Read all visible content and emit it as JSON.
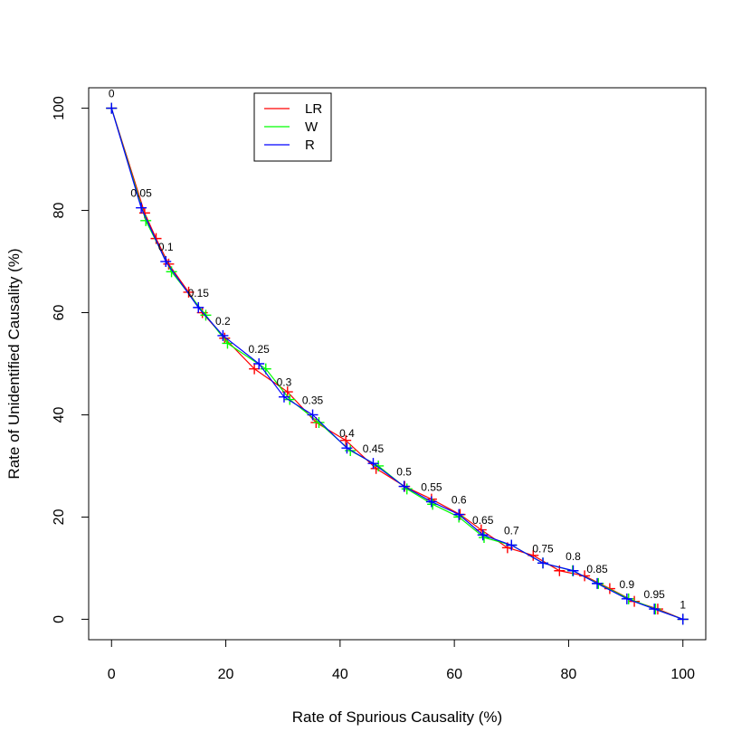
{
  "chart_data": {
    "type": "line",
    "title": "",
    "xlabel": "Rate of Spurious Causality (%)",
    "ylabel": "Rate of Unidentified Causality (%)",
    "xlim": [
      -4,
      104
    ],
    "ylim": [
      -4,
      104
    ],
    "xticks": [
      0,
      20,
      40,
      60,
      80,
      100
    ],
    "yticks": [
      0,
      20,
      40,
      60,
      80,
      100
    ],
    "grid": false,
    "legend_position": "top-left",
    "threshold_labels": [
      "0",
      "0.05",
      "0.1",
      "0.15",
      "0.2",
      "0.25",
      "0.3",
      "0.35",
      "0.4",
      "0.45",
      "0.5",
      "0.55",
      "0.6",
      "0.65",
      "0.7",
      "0.75",
      "0.8",
      "0.85",
      "0.9",
      "0.95",
      "1"
    ],
    "series": [
      {
        "name": "LR",
        "color": "#ff0000",
        "x": [
          0,
          5.8,
          7.8,
          10.0,
          13.5,
          15.9,
          19.8,
          25.0,
          30.8,
          35.8,
          41.0,
          46.3,
          51.3,
          56.0,
          61.0,
          64.7,
          69.3,
          73.8,
          78.4,
          82.8,
          87.2,
          91.5,
          95.6,
          100
        ],
        "y": [
          100,
          79.5,
          74.5,
          69.5,
          64.0,
          60.0,
          55.0,
          49.0,
          44.5,
          38.5,
          35.0,
          29.5,
          26.0,
          23.5,
          20.5,
          17.5,
          14.0,
          12.5,
          9.5,
          8.5,
          6.0,
          3.5,
          2.0,
          0
        ]
      },
      {
        "name": "W",
        "color": "#00ff00",
        "x": [
          0,
          6.0,
          10.5,
          16.5,
          20.3,
          27.0,
          31.2,
          36.3,
          41.8,
          46.7,
          51.7,
          56.2,
          60.8,
          65.2,
          70.0,
          75.5,
          80.7,
          85.2,
          90.5,
          95.2,
          100
        ],
        "y": [
          100,
          78.0,
          68.0,
          59.5,
          54.0,
          49.0,
          43.0,
          38.5,
          33.0,
          30.0,
          25.5,
          22.5,
          20.0,
          16.0,
          14.5,
          11.0,
          9.5,
          7.0,
          4.0,
          2.0,
          0
        ]
      },
      {
        "name": "R",
        "color": "#0000ff",
        "x": [
          0,
          5.2,
          9.5,
          15.2,
          19.5,
          25.8,
          30.2,
          35.2,
          41.2,
          45.8,
          51.2,
          56.0,
          60.8,
          65.0,
          70.0,
          75.5,
          80.8,
          85.0,
          90.2,
          95.0,
          100
        ],
        "y": [
          100,
          80.5,
          70.0,
          61.0,
          55.5,
          50.0,
          43.5,
          40.0,
          33.5,
          30.5,
          26.0,
          23.0,
          20.5,
          16.5,
          14.5,
          11.0,
          9.5,
          7.0,
          4.0,
          2.0,
          0
        ]
      }
    ],
    "label_points": [
      {
        "label": "0",
        "x": 0,
        "y": 100
      },
      {
        "label": "0.05",
        "x": 5.2,
        "y": 80.5
      },
      {
        "label": "0.1",
        "x": 9.5,
        "y": 70.0
      },
      {
        "label": "0.15",
        "x": 15.2,
        "y": 61.0
      },
      {
        "label": "0.2",
        "x": 19.5,
        "y": 55.5
      },
      {
        "label": "0.25",
        "x": 25.8,
        "y": 50.0
      },
      {
        "label": "0.3",
        "x": 30.2,
        "y": 43.5
      },
      {
        "label": "0.35",
        "x": 35.2,
        "y": 40.0
      },
      {
        "label": "0.4",
        "x": 41.2,
        "y": 33.5
      },
      {
        "label": "0.45",
        "x": 45.8,
        "y": 30.5
      },
      {
        "label": "0.5",
        "x": 51.2,
        "y": 26.0
      },
      {
        "label": "0.55",
        "x": 56.0,
        "y": 23.0
      },
      {
        "label": "0.6",
        "x": 60.8,
        "y": 20.5
      },
      {
        "label": "0.65",
        "x": 65.0,
        "y": 16.5
      },
      {
        "label": "0.7",
        "x": 70.0,
        "y": 14.5
      },
      {
        "label": "0.75",
        "x": 75.5,
        "y": 11.0
      },
      {
        "label": "0.8",
        "x": 80.8,
        "y": 9.5
      },
      {
        "label": "0.85",
        "x": 85.0,
        "y": 7.0
      },
      {
        "label": "0.9",
        "x": 90.2,
        "y": 4.0
      },
      {
        "label": "0.95",
        "x": 95.0,
        "y": 2.0
      },
      {
        "label": "1",
        "x": 100,
        "y": 0
      }
    ]
  }
}
